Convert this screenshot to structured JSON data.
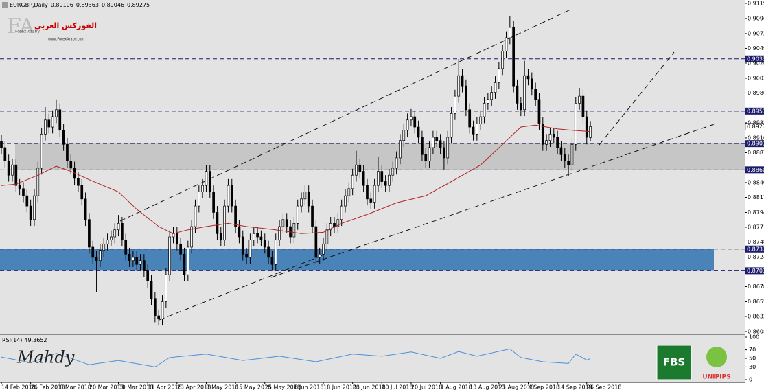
{
  "header": {
    "symbol": "EURGBP,Daily"
  },
  "logo": {
    "brand": "Forex Araby",
    "arabic": "الفوركس العربي",
    "url": "www.ForexAraby.com"
  },
  "watermark": "Mahdy",
  "badges": {
    "fbs": "FBS",
    "unipips": "UNIPIPS"
  },
  "chart_data": {
    "type": "candlestick",
    "up_color": "#ffffff",
    "down_color": "#000000",
    "candles": [
      [
        0.8905,
        0.8915,
        0.8885,
        0.8895
      ],
      [
        0.8895,
        0.8905,
        0.8864,
        0.8874
      ],
      [
        0.8874,
        0.8884,
        0.8842,
        0.8852
      ],
      [
        0.8852,
        0.8878,
        0.8842,
        0.8868
      ],
      [
        0.8868,
        0.8878,
        0.8826,
        0.8836
      ],
      [
        0.8836,
        0.8846,
        0.8821,
        0.8831
      ],
      [
        0.8831,
        0.8841,
        0.881,
        0.882
      ],
      [
        0.882,
        0.883,
        0.8794,
        0.8804
      ],
      [
        0.8804,
        0.8814,
        0.8773,
        0.8783
      ],
      [
        0.8783,
        0.883,
        0.8773,
        0.882
      ],
      [
        0.882,
        0.8873,
        0.881,
        0.8863
      ],
      [
        0.8863,
        0.8926,
        0.8853,
        0.8916
      ],
      [
        0.8916,
        0.8958,
        0.8906,
        0.8938
      ],
      [
        0.8938,
        0.8948,
        0.8917,
        0.8927
      ],
      [
        0.8927,
        0.8953,
        0.8917,
        0.8943
      ],
      [
        0.8943,
        0.897,
        0.8933,
        0.8954
      ],
      [
        0.8954,
        0.8964,
        0.8912,
        0.8922
      ],
      [
        0.8922,
        0.8932,
        0.889,
        0.89
      ],
      [
        0.89,
        0.891,
        0.8864,
        0.8874
      ],
      [
        0.8874,
        0.8884,
        0.8853,
        0.8863
      ],
      [
        0.8863,
        0.8873,
        0.8837,
        0.8847
      ],
      [
        0.8847,
        0.8857,
        0.8826,
        0.8836
      ],
      [
        0.8836,
        0.8846,
        0.8805,
        0.8815
      ],
      [
        0.8815,
        0.8825,
        0.8773,
        0.8783
      ],
      [
        0.8783,
        0.8793,
        0.873,
        0.874
      ],
      [
        0.874,
        0.875,
        0.8714,
        0.8724
      ],
      [
        0.8724,
        0.8734,
        0.867,
        0.8719
      ],
      [
        0.8719,
        0.8745,
        0.8709,
        0.8735
      ],
      [
        0.8735,
        0.8755,
        0.8725,
        0.8745
      ],
      [
        0.8745,
        0.8761,
        0.8735,
        0.8751
      ],
      [
        0.8751,
        0.8766,
        0.8741,
        0.8756
      ],
      [
        0.8756,
        0.8777,
        0.8746,
        0.8767
      ],
      [
        0.8767,
        0.879,
        0.8757,
        0.8777
      ],
      [
        0.8777,
        0.8787,
        0.8741,
        0.8751
      ],
      [
        0.8751,
        0.8761,
        0.8719,
        0.8729
      ],
      [
        0.8729,
        0.8739,
        0.8709,
        0.8719
      ],
      [
        0.8719,
        0.8734,
        0.8709,
        0.8724
      ],
      [
        0.8724,
        0.8734,
        0.8703,
        0.8713
      ],
      [
        0.8713,
        0.8729,
        0.8703,
        0.8719
      ],
      [
        0.8719,
        0.8729,
        0.8693,
        0.8703
      ],
      [
        0.8703,
        0.8713,
        0.8677,
        0.8687
      ],
      [
        0.8687,
        0.8697,
        0.865,
        0.866
      ],
      [
        0.866,
        0.867,
        0.8623,
        0.8633
      ],
      [
        0.8633,
        0.8643,
        0.8618,
        0.8628
      ],
      [
        0.8628,
        0.8665,
        0.8618,
        0.8655
      ],
      [
        0.8655,
        0.8707,
        0.8645,
        0.8697
      ],
      [
        0.8697,
        0.8766,
        0.8687,
        0.8756
      ],
      [
        0.8756,
        0.8771,
        0.8746,
        0.8761
      ],
      [
        0.8761,
        0.8771,
        0.8735,
        0.8745
      ],
      [
        0.8745,
        0.8755,
        0.8719,
        0.8729
      ],
      [
        0.8729,
        0.8739,
        0.8687,
        0.8697
      ],
      [
        0.8697,
        0.875,
        0.8687,
        0.874
      ],
      [
        0.874,
        0.8782,
        0.873,
        0.8772
      ],
      [
        0.8772,
        0.8814,
        0.8762,
        0.8804
      ],
      [
        0.8804,
        0.8836,
        0.8794,
        0.8826
      ],
      [
        0.8826,
        0.8846,
        0.8816,
        0.8836
      ],
      [
        0.8836,
        0.8868,
        0.8826,
        0.8858
      ],
      [
        0.8858,
        0.8868,
        0.8816,
        0.8826
      ],
      [
        0.8826,
        0.8836,
        0.8784,
        0.8794
      ],
      [
        0.8794,
        0.8804,
        0.8751,
        0.8761
      ],
      [
        0.8761,
        0.8771,
        0.8741,
        0.8751
      ],
      [
        0.8751,
        0.8814,
        0.8741,
        0.8804
      ],
      [
        0.8804,
        0.8846,
        0.8794,
        0.8836
      ],
      [
        0.8836,
        0.8846,
        0.8794,
        0.8804
      ],
      [
        0.8804,
        0.8814,
        0.8762,
        0.8772
      ],
      [
        0.8772,
        0.8782,
        0.8746,
        0.8756
      ],
      [
        0.8756,
        0.8766,
        0.8719,
        0.8729
      ],
      [
        0.8729,
        0.8739,
        0.8714,
        0.8724
      ],
      [
        0.8724,
        0.8761,
        0.8714,
        0.8751
      ],
      [
        0.8751,
        0.8771,
        0.8741,
        0.8761
      ],
      [
        0.8761,
        0.8771,
        0.8746,
        0.8756
      ],
      [
        0.8756,
        0.8766,
        0.8741,
        0.8751
      ],
      [
        0.8751,
        0.8761,
        0.873,
        0.874
      ],
      [
        0.874,
        0.875,
        0.8714,
        0.8724
      ],
      [
        0.8724,
        0.8734,
        0.8703,
        0.8713
      ],
      [
        0.8713,
        0.8761,
        0.8703,
        0.8751
      ],
      [
        0.8751,
        0.8782,
        0.8741,
        0.8772
      ],
      [
        0.8772,
        0.8793,
        0.8762,
        0.8783
      ],
      [
        0.8783,
        0.8793,
        0.8762,
        0.8772
      ],
      [
        0.8772,
        0.8782,
        0.8746,
        0.8756
      ],
      [
        0.8756,
        0.8787,
        0.8746,
        0.8777
      ],
      [
        0.8777,
        0.8814,
        0.8767,
        0.8804
      ],
      [
        0.8804,
        0.8825,
        0.8794,
        0.8815
      ],
      [
        0.8815,
        0.8836,
        0.8805,
        0.8826
      ],
      [
        0.8826,
        0.8836,
        0.8794,
        0.8804
      ],
      [
        0.8804,
        0.8814,
        0.8762,
        0.8772
      ],
      [
        0.8772,
        0.8782,
        0.8714,
        0.8724
      ],
      [
        0.8724,
        0.8739,
        0.8714,
        0.8729
      ],
      [
        0.8729,
        0.8755,
        0.8719,
        0.8745
      ],
      [
        0.8745,
        0.8777,
        0.8735,
        0.8767
      ],
      [
        0.8767,
        0.8787,
        0.8757,
        0.8777
      ],
      [
        0.8777,
        0.8787,
        0.8762,
        0.8772
      ],
      [
        0.8772,
        0.8793,
        0.8762,
        0.8783
      ],
      [
        0.8783,
        0.8814,
        0.8773,
        0.8804
      ],
      [
        0.8804,
        0.883,
        0.8794,
        0.882
      ],
      [
        0.882,
        0.8841,
        0.881,
        0.8831
      ],
      [
        0.8831,
        0.8862,
        0.8821,
        0.8852
      ],
      [
        0.8852,
        0.889,
        0.8842,
        0.8868
      ],
      [
        0.8868,
        0.8878,
        0.8848,
        0.8858
      ],
      [
        0.8858,
        0.8868,
        0.8826,
        0.8836
      ],
      [
        0.8836,
        0.8846,
        0.8805,
        0.8815
      ],
      [
        0.8815,
        0.8825,
        0.88,
        0.881
      ],
      [
        0.881,
        0.8846,
        0.88,
        0.8836
      ],
      [
        0.8836,
        0.888,
        0.8826,
        0.8858
      ],
      [
        0.8858,
        0.8868,
        0.8832,
        0.8842
      ],
      [
        0.8842,
        0.8852,
        0.8826,
        0.8836
      ],
      [
        0.8836,
        0.8862,
        0.8826,
        0.8852
      ],
      [
        0.8852,
        0.8873,
        0.8842,
        0.8863
      ],
      [
        0.8863,
        0.8889,
        0.8853,
        0.8879
      ],
      [
        0.8879,
        0.8916,
        0.8869,
        0.8906
      ],
      [
        0.8906,
        0.8932,
        0.8896,
        0.8922
      ],
      [
        0.8922,
        0.8948,
        0.8912,
        0.8938
      ],
      [
        0.8938,
        0.8955,
        0.8928,
        0.8943
      ],
      [
        0.8943,
        0.8953,
        0.8917,
        0.8927
      ],
      [
        0.8927,
        0.8937,
        0.8901,
        0.8911
      ],
      [
        0.8911,
        0.8921,
        0.8874,
        0.8884
      ],
      [
        0.8884,
        0.8894,
        0.8864,
        0.8874
      ],
      [
        0.8874,
        0.8905,
        0.8864,
        0.8895
      ],
      [
        0.8895,
        0.8921,
        0.8885,
        0.8911
      ],
      [
        0.8911,
        0.8921,
        0.8896,
        0.8906
      ],
      [
        0.8906,
        0.8916,
        0.8885,
        0.8895
      ],
      [
        0.8895,
        0.8905,
        0.886,
        0.8879
      ],
      [
        0.8879,
        0.8921,
        0.8869,
        0.8911
      ],
      [
        0.8911,
        0.8958,
        0.8901,
        0.8948
      ],
      [
        0.8948,
        0.8985,
        0.8938,
        0.8975
      ],
      [
        0.8975,
        0.9033,
        0.8965,
        0.9007
      ],
      [
        0.9007,
        0.9017,
        0.8981,
        0.8991
      ],
      [
        0.8991,
        0.9001,
        0.8944,
        0.8954
      ],
      [
        0.8954,
        0.8964,
        0.8917,
        0.8927
      ],
      [
        0.8927,
        0.8937,
        0.8906,
        0.8916
      ],
      [
        0.8916,
        0.8942,
        0.8906,
        0.8932
      ],
      [
        0.8932,
        0.8953,
        0.8922,
        0.8943
      ],
      [
        0.8943,
        0.8974,
        0.8933,
        0.8964
      ],
      [
        0.8964,
        0.898,
        0.8954,
        0.897
      ],
      [
        0.897,
        0.8991,
        0.896,
        0.8981
      ],
      [
        0.8981,
        0.9006,
        0.8971,
        0.8996
      ],
      [
        0.8996,
        0.9028,
        0.8986,
        0.9018
      ],
      [
        0.9018,
        0.9055,
        0.9008,
        0.9045
      ],
      [
        0.9045,
        0.9076,
        0.9035,
        0.9066
      ],
      [
        0.9066,
        0.91,
        0.9056,
        0.9082
      ],
      [
        0.9082,
        0.9092,
        0.8981,
        0.8991
      ],
      [
        0.8991,
        0.9001,
        0.8954,
        0.8964
      ],
      [
        0.8964,
        0.8974,
        0.8944,
        0.8954
      ],
      [
        0.8954,
        0.903,
        0.8944,
        0.9007
      ],
      [
        0.9007,
        0.9017,
        0.8992,
        0.9002
      ],
      [
        0.9002,
        0.9012,
        0.8976,
        0.8986
      ],
      [
        0.8986,
        0.8996,
        0.896,
        0.897
      ],
      [
        0.897,
        0.898,
        0.8922,
        0.8932
      ],
      [
        0.8932,
        0.8942,
        0.889,
        0.89
      ],
      [
        0.89,
        0.8916,
        0.889,
        0.8906
      ],
      [
        0.8906,
        0.8926,
        0.8896,
        0.8916
      ],
      [
        0.8916,
        0.8926,
        0.8901,
        0.8911
      ],
      [
        0.8911,
        0.8921,
        0.8885,
        0.8895
      ],
      [
        0.8895,
        0.8905,
        0.8874,
        0.8884
      ],
      [
        0.8884,
        0.8894,
        0.8864,
        0.8874
      ],
      [
        0.8874,
        0.8884,
        0.885,
        0.8868
      ],
      [
        0.8868,
        0.891,
        0.8858,
        0.89
      ],
      [
        0.89,
        0.8974,
        0.889,
        0.8964
      ],
      [
        0.8964,
        0.8988,
        0.8954,
        0.8975
      ],
      [
        0.8975,
        0.8985,
        0.8933,
        0.8943
      ],
      [
        0.8943,
        0.8953,
        0.89,
        0.8911
      ],
      [
        0.89106,
        0.89363,
        0.89046,
        0.89275
      ]
    ],
    "xlim": [
      -0.375,
      203.2
    ],
    "xticks": [
      {
        "value": 0,
        "label": "14 Feb 2018"
      },
      {
        "value": 8,
        "label": "26 Feb 2018"
      },
      {
        "value": 16,
        "label": "8 Mar 2018"
      },
      {
        "value": 24,
        "label": "20 Mar 2018"
      },
      {
        "value": 32,
        "label": "30 Mar 2018"
      },
      {
        "value": 40,
        "label": "11 Apr 2018"
      },
      {
        "value": 48,
        "label": "23 Apr 2018"
      },
      {
        "value": 56,
        "label": "3 May 2018"
      },
      {
        "value": 64,
        "label": "15 May 2018"
      },
      {
        "value": 72,
        "label": "25 May 2018"
      },
      {
        "value": 80,
        "label": "6 Jun 2018"
      },
      {
        "value": 88,
        "label": "18 Jun 2018"
      },
      {
        "value": 96,
        "label": "28 Jun 2018"
      },
      {
        "value": 104,
        "label": "10 Jul 2018"
      },
      {
        "value": 112,
        "label": "20 Jul 2018"
      },
      {
        "value": 120,
        "label": "1 Aug 2018"
      },
      {
        "value": 128,
        "label": "13 Aug 2018"
      },
      {
        "value": 136,
        "label": "23 Aug 2018"
      },
      {
        "value": 144,
        "label": "4 Sep 2018"
      },
      {
        "value": 152,
        "label": "14 Sep 2018"
      },
      {
        "value": 160,
        "label": "26 Sep 2018"
      }
    ],
    "ylim": [
      0.86042,
      0.91248
    ],
    "yticks": [
      0.91195,
      {
        "value": 0.9096,
        "label": "0.90960"
      },
      0.90725,
      0.90495,
      0.90265,
      {
        "value": 0.9003,
        "label": "0.90030"
      },
      {
        "value": 0.898,
        "label": "0.89800"
      },
      0.89335,
      {
        "value": 0.891,
        "label": "0.89100"
      },
      {
        "value": 0.8887,
        "label": "0.88870"
      },
      0.88405,
      0.88175,
      {
        "value": 0.8794,
        "label": "0.87940"
      },
      {
        "value": 0.8771,
        "label": "0.87710"
      },
      {
        "value": 0.8748,
        "label": "0.87480"
      },
      0.87245,
      0.86785,
      {
        "value": 0.8655,
        "label": "0.86550"
      },
      {
        "value": 0.8632,
        "label": "0.86320"
      },
      0.86085
    ],
    "levels": [
      0.90331,
      0.89518,
      0.89012,
      0.88604,
      {
        "value": 0.8737,
        "label": "0.87370"
      },
      0.87032
    ],
    "level_color": "#1c1c6b",
    "zones": [
      {
        "from": 0.88604,
        "to": 0.89012,
        "color": "#c6c6c6"
      },
      {
        "from": 0.87032,
        "to": 0.8737,
        "color": "#4a83b8"
      }
    ],
    "ma": {
      "color": "#b22222",
      "x": [
        0,
        4,
        10,
        15,
        19,
        24,
        32,
        37,
        43,
        47,
        51,
        56,
        62,
        67,
        75,
        82,
        88,
        93,
        101,
        108,
        116,
        123,
        131,
        137,
        142,
        146,
        152,
        156,
        161
      ],
      "values": [
        0.8836,
        0.8838,
        0.8852,
        0.8866,
        0.8858,
        0.8845,
        0.8826,
        0.8799,
        0.8772,
        0.8761,
        0.8767,
        0.8772,
        0.8777,
        0.8772,
        0.8767,
        0.8761,
        0.8763,
        0.8777,
        0.8793,
        0.8809,
        0.882,
        0.8842,
        0.8868,
        0.89,
        0.8927,
        0.893,
        0.8924,
        0.8922,
        0.892
      ]
    },
    "rsi": {
      "label": "RSI(14)",
      "color": "#4a90d9",
      "x": [
        0,
        8,
        15,
        24,
        32,
        42,
        46,
        56,
        66,
        76,
        86,
        96,
        104,
        112,
        120,
        125,
        130,
        139,
        142,
        148,
        155,
        157,
        160,
        161
      ],
      "values": [
        53,
        40,
        62,
        35,
        45,
        30,
        52,
        60,
        45,
        55,
        42,
        60,
        55,
        65,
        50,
        66,
        55,
        72,
        52,
        42,
        38,
        60,
        46,
        49.3652
      ],
      "ylim": [
        0,
        100
      ],
      "yticks": [
        0,
        30,
        50,
        70,
        100
      ]
    }
  }
}
